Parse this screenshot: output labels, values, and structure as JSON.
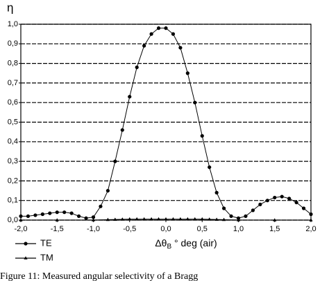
{
  "chart_data": {
    "type": "line",
    "ylabel": "η",
    "xlabel": {
      "main": "Δθ",
      "sub": "B",
      "rest": " ° deg (air)"
    },
    "caption": "Figure 11: Measured angular selectivity of a Bragg",
    "xlim": [
      -2.0,
      2.0
    ],
    "ylim": [
      0.0,
      1.0
    ],
    "xticks": [
      {
        "value": -2.0,
        "label": "-2,0"
      },
      {
        "value": -1.5,
        "label": "-1,5"
      },
      {
        "value": -1.0,
        "label": "-1,0"
      },
      {
        "value": -0.5,
        "label": "-0,5"
      },
      {
        "value": 0.0,
        "label": "0,0"
      },
      {
        "value": 0.5,
        "label": "0,5"
      },
      {
        "value": 1.0,
        "label": "1,0"
      },
      {
        "value": 1.5,
        "label": "1,5"
      },
      {
        "value": 2.0,
        "label": "2,0"
      }
    ],
    "yticks": [
      {
        "value": 0.0,
        "label": "0,0"
      },
      {
        "value": 0.1,
        "label": "0,1"
      },
      {
        "value": 0.2,
        "label": "0,2"
      },
      {
        "value": 0.3,
        "label": "0,3"
      },
      {
        "value": 0.4,
        "label": "0,4"
      },
      {
        "value": 0.5,
        "label": "0,5"
      },
      {
        "value": 0.6,
        "label": "0,6"
      },
      {
        "value": 0.7,
        "label": "0,7"
      },
      {
        "value": 0.8,
        "label": "0,8"
      },
      {
        "value": 0.9,
        "label": "0,9"
      },
      {
        "value": 1.0,
        "label": "1,0"
      }
    ],
    "grid": true,
    "series": [
      {
        "name": "TE",
        "color": "#000000",
        "marker": "circle",
        "x": [
          -2.0,
          -1.9,
          -1.8,
          -1.7,
          -1.6,
          -1.5,
          -1.4,
          -1.3,
          -1.2,
          -1.1,
          -1.0,
          -0.9,
          -0.8,
          -0.7,
          -0.6,
          -0.5,
          -0.4,
          -0.3,
          -0.2,
          -0.1,
          0.0,
          0.1,
          0.2,
          0.3,
          0.4,
          0.5,
          0.6,
          0.7,
          0.8,
          0.9,
          1.0,
          1.1,
          1.2,
          1.3,
          1.4,
          1.5,
          1.6,
          1.7,
          1.8,
          1.9,
          2.0
        ],
        "values": [
          0.02,
          0.02,
          0.025,
          0.03,
          0.035,
          0.04,
          0.04,
          0.035,
          0.02,
          0.01,
          0.015,
          0.07,
          0.15,
          0.3,
          0.46,
          0.63,
          0.78,
          0.89,
          0.95,
          0.98,
          0.98,
          0.95,
          0.88,
          0.75,
          0.6,
          0.43,
          0.27,
          0.14,
          0.06,
          0.02,
          0.01,
          0.02,
          0.05,
          0.08,
          0.1,
          0.115,
          0.12,
          0.11,
          0.09,
          0.06,
          0.03
        ]
      },
      {
        "name": "TM",
        "color": "#000000",
        "marker": "triangle",
        "x": [
          -2.0,
          -1.5,
          -1.0,
          -0.8,
          -0.7,
          -0.6,
          -0.5,
          -0.4,
          -0.3,
          -0.2,
          -0.1,
          0.0,
          0.1,
          0.2,
          0.3,
          0.4,
          0.5,
          0.6,
          0.7,
          0.8,
          1.0,
          1.5,
          2.0
        ],
        "values": [
          0.0,
          0.0,
          0.0,
          0.002,
          0.003,
          0.004,
          0.005,
          0.005,
          0.005,
          0.005,
          0.005,
          0.005,
          0.005,
          0.005,
          0.005,
          0.005,
          0.005,
          0.004,
          0.003,
          0.002,
          0.0,
          0.0,
          0.0
        ]
      }
    ]
  }
}
